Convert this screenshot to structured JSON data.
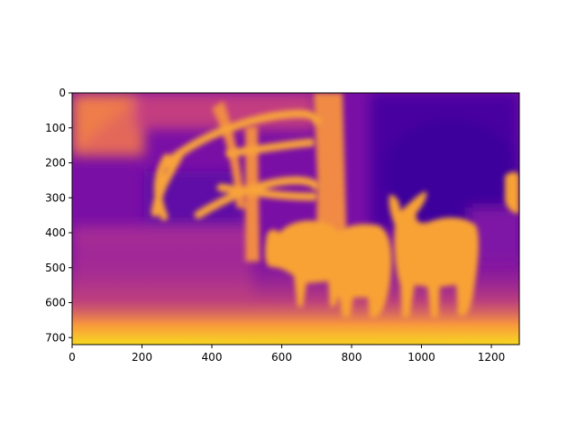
{
  "chart_data": {
    "type": "heatmap",
    "title": "",
    "xlabel": "",
    "ylabel": "",
    "xlim": [
      0,
      1280
    ],
    "ylim": [
      720,
      0
    ],
    "x_ticks": [
      0,
      200,
      400,
      600,
      800,
      1000,
      1200
    ],
    "x_tick_labels": [
      "0",
      "200",
      "400",
      "600",
      "800",
      "1000",
      "1200"
    ],
    "y_ticks": [
      0,
      100,
      200,
      300,
      400,
      500,
      600,
      700
    ],
    "y_tick_labels": [
      "0",
      "100",
      "200",
      "300",
      "400",
      "500",
      "600",
      "700"
    ],
    "grid": false,
    "colormap": "plasma",
    "colors": {
      "near": "#f5e51e",
      "mid": "#f8a23a",
      "far": "#6a0aa8",
      "farthest": "#3c049c"
    }
  }
}
